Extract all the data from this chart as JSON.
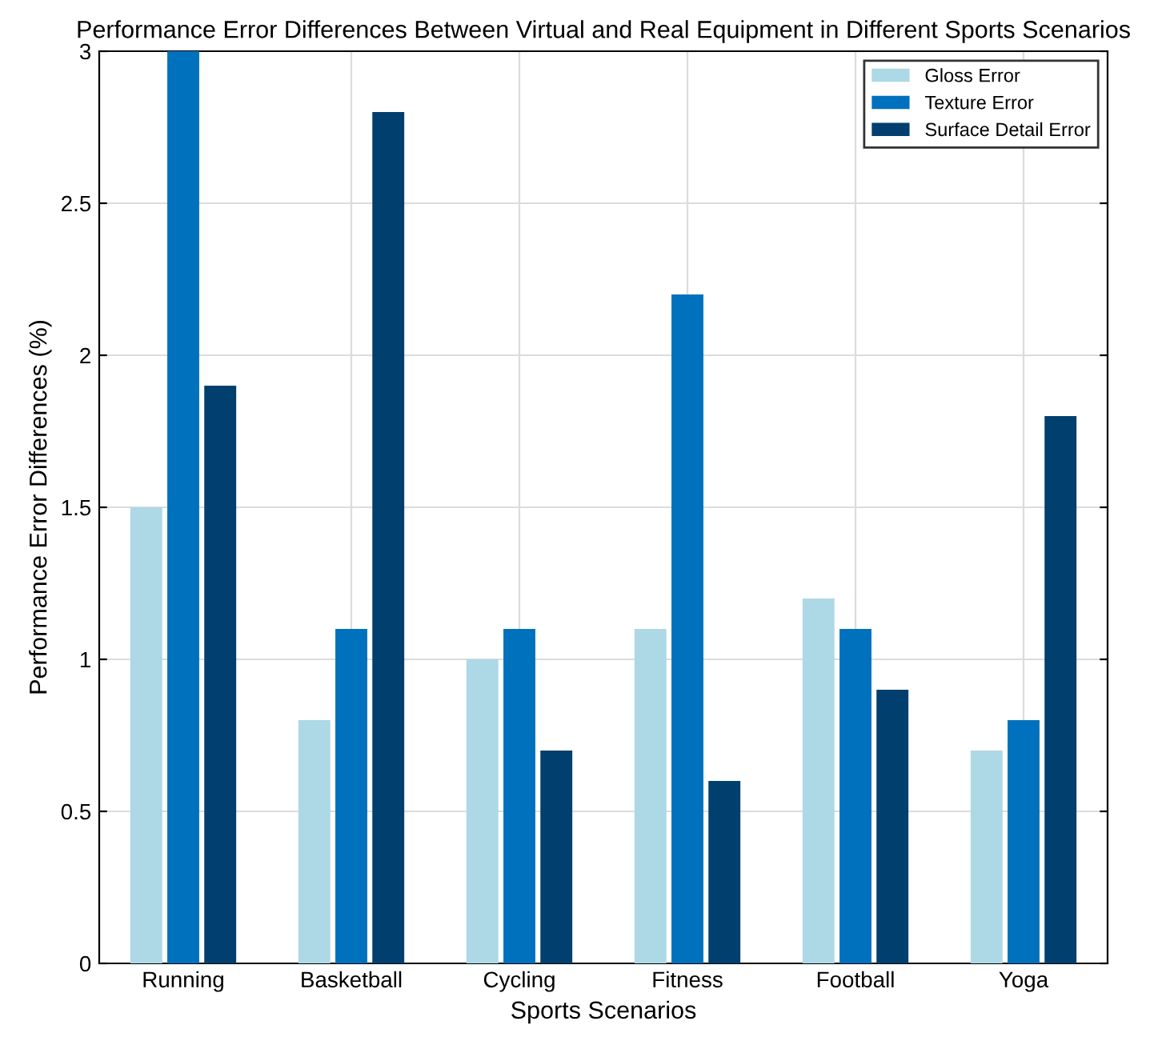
{
  "chart_data": {
    "type": "bar",
    "title": "Performance Error Differences Between Virtual and Real Equipment in Different Sports Scenarios",
    "xlabel": "Sports Scenarios",
    "ylabel": "Performance Error Differences (%)",
    "categories": [
      "Running",
      "Basketball",
      "Cycling",
      "Fitness",
      "Football",
      "Yoga"
    ],
    "series": [
      {
        "name": "Gloss Error",
        "color": "#add8e6",
        "values": [
          1.5,
          0.8,
          1.0,
          1.1,
          1.2,
          0.7
        ]
      },
      {
        "name": "Texture Error",
        "color": "#0072bd",
        "values": [
          3.0,
          1.1,
          1.1,
          2.2,
          1.1,
          0.8
        ]
      },
      {
        "name": "Surface Detail Error",
        "color": "#003f6e",
        "values": [
          1.9,
          2.8,
          0.7,
          0.6,
          0.9,
          1.8
        ]
      }
    ],
    "ylim": [
      0,
      3
    ],
    "yticks": [
      0,
      0.5,
      1,
      1.5,
      2,
      2.5,
      3
    ],
    "grid": true,
    "legend": "top right"
  }
}
